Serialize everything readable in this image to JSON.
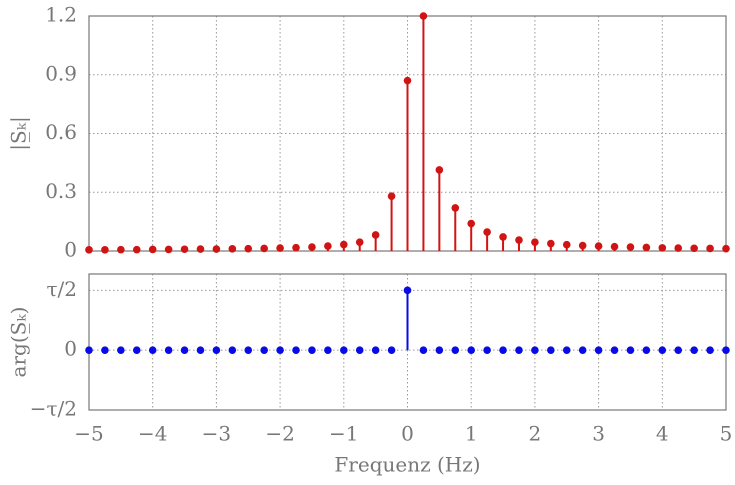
{
  "chart_data": [
    {
      "type": "stem",
      "ylabel": "|S̲ₖ|",
      "x": [
        -5,
        -4.75,
        -4.5,
        -4.25,
        -4,
        -3.75,
        -3.5,
        -3.25,
        -3,
        -2.75,
        -2.5,
        -2.25,
        -2,
        -1.75,
        -1.5,
        -1.25,
        -1,
        -0.75,
        -0.5,
        -0.25,
        0,
        0.25,
        0.5,
        0.75,
        1,
        1.25,
        1.5,
        1.75,
        2,
        2.25,
        2.5,
        2.75,
        3,
        3.25,
        3.5,
        3.75,
        4,
        4.25,
        4.5,
        4.75,
        5
      ],
      "series": [
        {
          "color": "#d01414",
          "values": [
            0.006,
            0.006,
            0.007,
            0.007,
            0.008,
            0.008,
            0.009,
            0.01,
            0.01,
            0.011,
            0.012,
            0.013,
            0.015,
            0.017,
            0.02,
            0.025,
            0.033,
            0.045,
            0.082,
            0.28,
            0.87,
            1.2,
            0.414,
            0.22,
            0.14,
            0.097,
            0.072,
            0.056,
            0.045,
            0.038,
            0.032,
            0.028,
            0.025,
            0.022,
            0.02,
            0.018,
            0.016,
            0.015,
            0.014,
            0.013,
            0.012
          ]
        }
      ],
      "xlim": [
        -5,
        5
      ],
      "xticks": [
        -5,
        -4,
        -3,
        -2,
        -1,
        0,
        1,
        2,
        3,
        4,
        5
      ],
      "ylim": [
        0,
        1.2
      ],
      "yticks": [
        0,
        0.3,
        0.6,
        0.9,
        1.2
      ],
      "grid": true
    },
    {
      "type": "stem",
      "ylabel": "arg(S̲ₖ)",
      "xlabel": "Frequenz (Hz)",
      "x": [
        -5,
        -4.75,
        -4.5,
        -4.25,
        -4,
        -3.75,
        -3.5,
        -3.25,
        -3,
        -2.75,
        -2.5,
        -2.25,
        -2,
        -1.75,
        -1.5,
        -1.25,
        -1,
        -0.75,
        -0.5,
        -0.25,
        0,
        0.25,
        0.5,
        0.75,
        1,
        1.25,
        1.5,
        1.75,
        2,
        2.25,
        2.5,
        2.75,
        3,
        3.25,
        3.5,
        3.75,
        4,
        4.25,
        4.5,
        4.75,
        5
      ],
      "series": [
        {
          "color": "#0a0ae6",
          "values": [
            0,
            0,
            0,
            0,
            0,
            0,
            0,
            0,
            0,
            0,
            0,
            0,
            0,
            0,
            0,
            0,
            0,
            0,
            0,
            0,
            3.14159,
            0,
            0,
            0,
            0,
            0,
            0,
            0,
            0,
            0,
            0,
            0,
            0,
            0,
            0,
            0,
            0,
            0,
            0,
            0,
            0
          ]
        }
      ],
      "xlim": [
        -5,
        5
      ],
      "xticks": [
        {
          "value": -5,
          "label": "−5"
        },
        {
          "value": -4,
          "label": "−4"
        },
        {
          "value": -3,
          "label": "−3"
        },
        {
          "value": -2,
          "label": "−2"
        },
        {
          "value": -1,
          "label": "−1"
        },
        0,
        1,
        2,
        3,
        4,
        5
      ],
      "ylim": [
        -3.14159,
        4
      ],
      "yticks": [
        {
          "value": -3.14159,
          "label": "−τ/2"
        },
        0,
        {
          "value": 3.14159,
          "label": "τ/2"
        }
      ],
      "grid": true
    }
  ]
}
